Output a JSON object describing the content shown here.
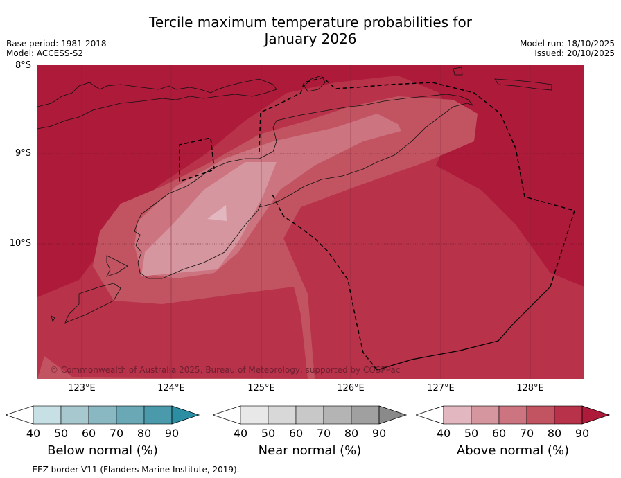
{
  "title_line1": "Tercile maximum temperature probabilities for",
  "title_line2": "January 2026",
  "base_period": "Base period: 1981-2018",
  "model": "Model: ACCESS-S2",
  "model_run": "Model run: 18/10/2025",
  "issued": "Issued: 20/10/2025",
  "lat_labels": [
    "8°S",
    "9°S",
    "10°S"
  ],
  "lon_labels": [
    "123°E",
    "124°E",
    "125°E",
    "126°E",
    "127°E",
    "128°E"
  ],
  "copyright": "© Commonwealth of Australia 2025, Bureau of Meteorology, supported by COSPPac",
  "legends": [
    {
      "title": "Below normal (%)",
      "ticks": [
        "40",
        "50",
        "60",
        "70",
        "80",
        "90"
      ],
      "colors": [
        "#c6e0e6",
        "#a8c8cf",
        "#89b7c2",
        "#6aa8b6",
        "#4a9aab",
        "#2c8ea3"
      ]
    },
    {
      "title": "Near normal (%)",
      "ticks": [
        "40",
        "50",
        "60",
        "70",
        "80",
        "90"
      ],
      "colors": [
        "#e8e8e8",
        "#d8d8d8",
        "#c8c8c8",
        "#b4b4b4",
        "#a0a0a0",
        "#8a8a8a"
      ]
    },
    {
      "title": "Above normal (%)",
      "ticks": [
        "40",
        "50",
        "60",
        "70",
        "80",
        "90"
      ],
      "colors": [
        "#e3b7bf",
        "#d6969f",
        "#cc7480",
        "#c25462",
        "#b8324a",
        "#ad1a3a"
      ]
    }
  ],
  "footer": "-- -- -- EEZ border V11 (Flanders Marine Institute, 2019).",
  "colors": {
    "c90": "#ad1a3a",
    "c80": "#b8324a",
    "c70": "#c25462",
    "c60": "#cc7480",
    "c50": "#d6969f"
  }
}
